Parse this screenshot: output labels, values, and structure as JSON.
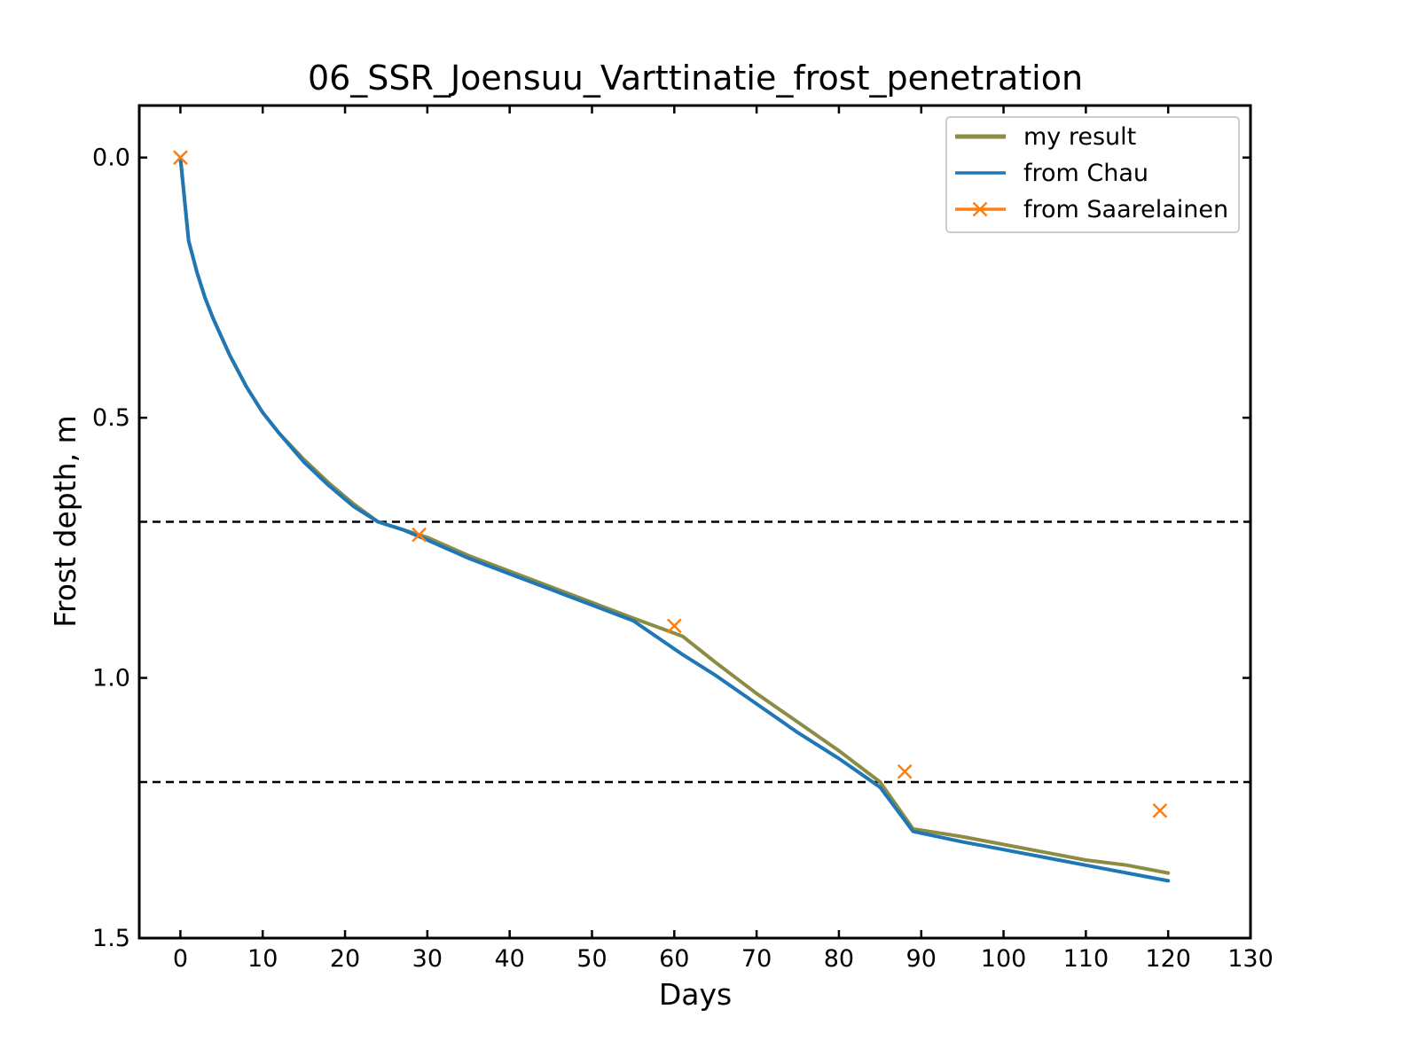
{
  "chart_data": {
    "type": "line",
    "title": "06_SSR_Joensuu_Varttinatie_frost_penetration",
    "xlabel": "Days",
    "ylabel": "Frost depth, m",
    "xlim": [
      -5,
      130
    ],
    "ylim": [
      1.5,
      -0.1
    ],
    "y_inverted": true,
    "xticks": [
      0,
      10,
      20,
      30,
      40,
      50,
      60,
      70,
      80,
      90,
      100,
      110,
      120,
      130
    ],
    "yticks": [
      0.0,
      0.5,
      1.0,
      1.5
    ],
    "xtick_labels": [
      "0",
      "10",
      "20",
      "30",
      "40",
      "50",
      "60",
      "70",
      "80",
      "90",
      "100",
      "110",
      "120",
      "130"
    ],
    "ytick_labels": [
      "0.0",
      "0.5",
      "1.0",
      "1.5"
    ],
    "grid": false,
    "legend_position": "top-right",
    "reference_lines": [
      {
        "y": 0.7,
        "style": "dashed",
        "color": "#000000"
      },
      {
        "y": 1.2,
        "style": "dashed",
        "color": "#000000"
      }
    ],
    "series": [
      {
        "name": "my result",
        "style": "line",
        "color": "#8c8c45",
        "x": [
          0,
          1,
          2,
          3,
          4,
          6,
          8,
          10,
          12,
          15,
          18,
          21,
          24,
          27,
          30,
          35,
          40,
          45,
          50,
          55,
          61,
          65,
          70,
          75,
          80,
          85,
          89,
          95,
          100,
          105,
          110,
          115,
          120
        ],
        "y": [
          0.0,
          0.16,
          0.22,
          0.27,
          0.31,
          0.38,
          0.44,
          0.49,
          0.53,
          0.58,
          0.625,
          0.665,
          0.7,
          0.715,
          0.73,
          0.765,
          0.795,
          0.825,
          0.855,
          0.885,
          0.92,
          0.97,
          1.03,
          1.085,
          1.14,
          1.2,
          1.29,
          1.305,
          1.32,
          1.335,
          1.35,
          1.36,
          1.375
        ]
      },
      {
        "name": "from Chau",
        "style": "line",
        "color": "#1f77b4",
        "x": [
          0,
          1,
          2,
          3,
          4,
          6,
          8,
          10,
          12,
          15,
          18,
          21,
          24,
          27,
          30,
          35,
          40,
          45,
          50,
          55,
          61,
          65,
          70,
          75,
          80,
          85,
          89,
          95,
          100,
          105,
          110,
          115,
          120
        ],
        "y": [
          0.0,
          0.16,
          0.22,
          0.27,
          0.31,
          0.38,
          0.44,
          0.49,
          0.53,
          0.585,
          0.63,
          0.67,
          0.7,
          0.715,
          0.735,
          0.77,
          0.8,
          0.83,
          0.86,
          0.89,
          0.955,
          0.995,
          1.05,
          1.105,
          1.155,
          1.21,
          1.295,
          1.315,
          1.33,
          1.345,
          1.36,
          1.375,
          1.39
        ]
      },
      {
        "name": "from Saarelainen",
        "style": "markers",
        "marker": "x",
        "color": "#ff7f0e",
        "x": [
          0,
          29,
          60,
          88,
          119
        ],
        "y": [
          0.0,
          0.725,
          0.9,
          1.18,
          1.255
        ]
      }
    ]
  }
}
